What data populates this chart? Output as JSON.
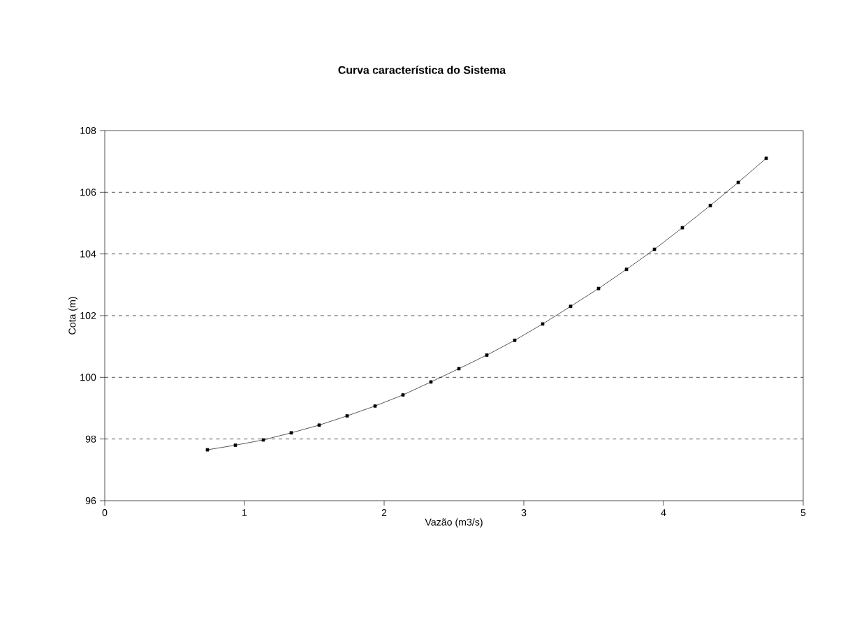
{
  "chart_data": {
    "type": "line",
    "title": "Curva característica do Sistema",
    "xlabel": "Vazão (m3/s)",
    "ylabel": "Cota (m)",
    "x": [
      0.735,
      0.935,
      1.135,
      1.335,
      1.535,
      1.735,
      1.935,
      2.135,
      2.335,
      2.535,
      2.735,
      2.935,
      3.135,
      3.335,
      3.535,
      3.735,
      3.935,
      4.135,
      4.335,
      4.535,
      4.735
    ],
    "series": [
      {
        "color": "#000000",
        "values": [
          97.65,
          97.8,
          97.97,
          98.2,
          98.45,
          98.75,
          99.07,
          99.43,
          99.85,
          100.28,
          100.72,
          101.2,
          101.73,
          102.3,
          102.88,
          103.5,
          104.15,
          104.85,
          105.57,
          106.32,
          107.1
        ]
      }
    ],
    "xlim": [
      0,
      5
    ],
    "ylim": [
      96,
      108
    ],
    "xticks": [
      0,
      1,
      2,
      3,
      4,
      5
    ],
    "yticks": [
      96,
      98,
      100,
      102,
      104,
      106,
      108
    ],
    "grid": "y",
    "marker": "square",
    "line_style": "solid"
  }
}
